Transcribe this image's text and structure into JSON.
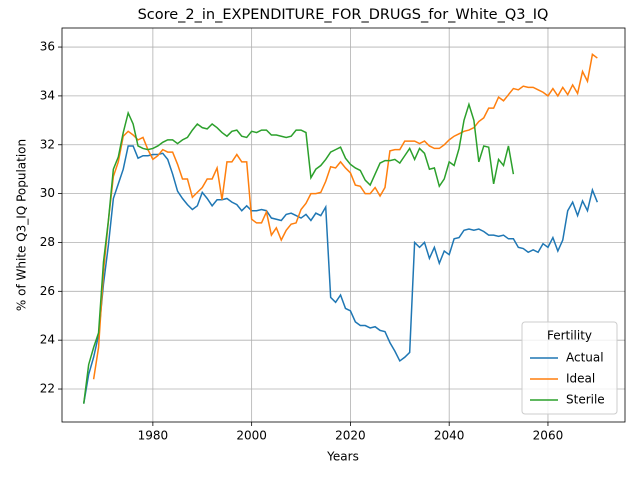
{
  "chart_data": {
    "type": "line",
    "title": "Score_2_in_EXPENDITURE_FOR_DRUGS_for_White_Q3_IQ",
    "x_label": "Years",
    "y_label": "% of White Q3_IQ Population",
    "legend_title": "Fertility",
    "legend_position": "lower right",
    "grid": true,
    "xlim": [
      1961.6,
      2075.6
    ],
    "ylim": [
      20.65,
      36.78
    ],
    "xticks": [
      1980,
      2000,
      2020,
      2040,
      2060
    ],
    "yticks": [
      22,
      24,
      26,
      28,
      30,
      32,
      34,
      36
    ],
    "x": [
      1966,
      1967,
      1968,
      1969,
      1970,
      1971,
      1972,
      1973,
      1974,
      1975,
      1976,
      1977,
      1978,
      1979,
      1980,
      1981,
      1982,
      1983,
      1984,
      1985,
      1986,
      1987,
      1988,
      1989,
      1990,
      1991,
      1992,
      1993,
      1994,
      1995,
      1996,
      1997,
      1998,
      1999,
      2000,
      2001,
      2002,
      2003,
      2004,
      2005,
      2006,
      2007,
      2008,
      2009,
      2010,
      2011,
      2012,
      2013,
      2014,
      2015,
      2016,
      2017,
      2018,
      2019,
      2020,
      2021,
      2022,
      2023,
      2024,
      2025,
      2026,
      2027,
      2028,
      2029,
      2030,
      2031,
      2032,
      2033,
      2034,
      2035,
      2036,
      2037,
      2038,
      2039,
      2040,
      2041,
      2042,
      2043,
      2044,
      2045,
      2046,
      2047,
      2048,
      2049,
      2050,
      2051,
      2052,
      2053,
      2054,
      2055,
      2056,
      2057,
      2058,
      2059,
      2060,
      2061,
      2062,
      2063,
      2064,
      2065,
      2066,
      2067,
      2068,
      2069,
      2070
    ],
    "series": [
      {
        "name": "Actual",
        "color": "#1f77b4",
        "values": [
          21.4,
          22.6,
          23.3,
          24.2,
          26.3,
          27.9,
          29.8,
          30.4,
          31.0,
          31.95,
          31.95,
          31.45,
          31.55,
          31.55,
          31.6,
          31.6,
          31.65,
          31.4,
          30.8,
          30.1,
          29.8,
          29.55,
          29.35,
          29.5,
          30.05,
          29.8,
          29.5,
          29.75,
          29.75,
          29.8,
          29.65,
          29.55,
          29.3,
          29.5,
          29.3,
          29.3,
          29.35,
          29.3,
          29.0,
          28.95,
          28.9,
          29.15,
          29.2,
          29.1,
          29.0,
          29.15,
          28.9,
          29.2,
          29.1,
          29.45,
          25.75,
          25.55,
          25.85,
          25.3,
          25.2,
          24.75,
          24.6,
          24.6,
          24.5,
          24.55,
          24.4,
          24.35,
          23.9,
          23.55,
          23.15,
          23.3,
          23.5,
          28.0,
          27.8,
          28.0,
          27.35,
          27.8,
          27.15,
          27.65,
          27.5,
          28.15,
          28.2,
          28.5,
          28.55,
          28.5,
          28.55,
          28.45,
          28.3,
          28.3,
          28.25,
          28.3,
          28.15,
          28.15,
          27.8,
          27.75,
          27.6,
          27.7,
          27.6,
          27.95,
          27.8,
          28.2,
          27.65,
          28.1,
          29.3,
          29.65,
          29.1,
          29.7,
          29.3,
          30.15,
          29.65
        ]
      },
      {
        "name": "Ideal",
        "color": "#ff7f0e",
        "values": [
          null,
          null,
          22.4,
          23.7,
          26.8,
          28.9,
          30.7,
          31.3,
          32.35,
          32.55,
          32.4,
          32.2,
          32.3,
          31.8,
          31.4,
          31.55,
          31.8,
          31.7,
          31.7,
          31.2,
          30.6,
          30.6,
          29.85,
          30.05,
          30.25,
          30.6,
          30.6,
          31.05,
          29.75,
          31.3,
          31.3,
          31.6,
          31.3,
          31.3,
          28.95,
          28.8,
          28.8,
          29.25,
          28.3,
          28.6,
          28.1,
          28.5,
          28.75,
          28.8,
          29.35,
          29.6,
          30.0,
          30.0,
          30.05,
          30.5,
          31.1,
          31.05,
          31.3,
          31.05,
          30.85,
          30.35,
          30.3,
          30.0,
          30.0,
          30.25,
          29.9,
          30.25,
          31.75,
          31.8,
          31.8,
          32.15,
          32.15,
          32.15,
          32.05,
          32.15,
          31.95,
          31.85,
          31.85,
          32.0,
          32.2,
          32.35,
          32.45,
          32.55,
          32.6,
          32.7,
          32.95,
          33.1,
          33.5,
          33.5,
          33.95,
          33.8,
          34.05,
          34.3,
          34.25,
          34.4,
          34.35,
          34.35,
          34.25,
          34.15,
          34.0,
          34.3,
          34.0,
          34.35,
          34.05,
          34.45,
          34.1,
          35.0,
          34.6,
          35.7,
          35.55
        ]
      },
      {
        "name": "Sterile",
        "color": "#2ca02c",
        "values": [
          21.4,
          23.0,
          23.7,
          24.3,
          27.2,
          28.9,
          31.0,
          31.5,
          32.5,
          33.3,
          32.85,
          31.95,
          31.85,
          31.8,
          31.85,
          31.95,
          32.1,
          32.2,
          32.2,
          32.05,
          32.2,
          32.3,
          32.6,
          32.85,
          32.7,
          32.65,
          32.85,
          32.7,
          32.5,
          32.35,
          32.55,
          32.6,
          32.35,
          32.3,
          32.55,
          32.5,
          32.6,
          32.6,
          32.4,
          32.4,
          32.35,
          32.3,
          32.35,
          32.6,
          32.6,
          32.5,
          30.65,
          31.0,
          31.15,
          31.4,
          31.7,
          31.8,
          31.9,
          31.45,
          31.2,
          31.05,
          30.95,
          30.55,
          30.35,
          30.8,
          31.25,
          31.35,
          31.35,
          31.4,
          31.25,
          31.55,
          31.85,
          31.4,
          31.85,
          31.65,
          31.0,
          31.05,
          30.3,
          30.6,
          31.3,
          31.15,
          31.85,
          33.0,
          33.65,
          33.0,
          31.3,
          31.95,
          31.9,
          30.4,
          31.4,
          31.15,
          31.95,
          30.8,
          null,
          null,
          null,
          null,
          null,
          null,
          null,
          null,
          null,
          null,
          null,
          null,
          null,
          null,
          null,
          null,
          null
        ]
      }
    ]
  }
}
